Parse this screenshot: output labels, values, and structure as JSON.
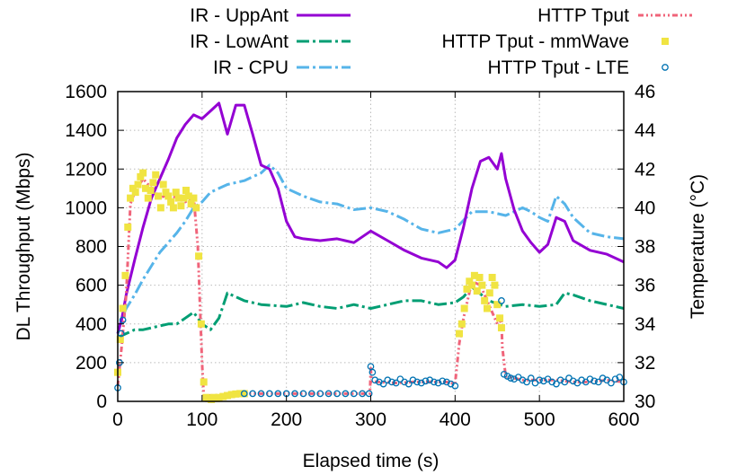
{
  "chart_data": {
    "type": "line",
    "title": "",
    "xlabel": "Elapsed time (s)",
    "ylabel_left": "DL Throughput (Mbps)",
    "ylabel_right": "Temperature (°C)",
    "xlim": [
      0,
      600
    ],
    "ylim_left": [
      0,
      1600
    ],
    "ylim_right": [
      30,
      46
    ],
    "x_ticks": [
      "0",
      "100",
      "200",
      "300",
      "400",
      "500",
      "600"
    ],
    "y_left_ticks": [
      "0",
      "200",
      "400",
      "600",
      "800",
      "1000",
      "1200",
      "1400",
      "1600"
    ],
    "y_right_ticks": [
      "30",
      "32",
      "34",
      "36",
      "38",
      "40",
      "42",
      "44",
      "46"
    ],
    "grid": true,
    "legend_position": "top, two columns above plot",
    "series": [
      {
        "name": "IR - UppAnt",
        "axis": "right",
        "style": "solid",
        "color": "#9400d3",
        "x": [
          0,
          5,
          10,
          20,
          30,
          40,
          50,
          60,
          70,
          80,
          90,
          100,
          110,
          120,
          130,
          140,
          150,
          160,
          170,
          180,
          190,
          200,
          210,
          220,
          240,
          260,
          280,
          300,
          320,
          340,
          360,
          380,
          390,
          400,
          410,
          420,
          430,
          440,
          450,
          455,
          460,
          470,
          480,
          490,
          500,
          510,
          520,
          530,
          540,
          560,
          580,
          600
        ],
        "y": [
          33.5,
          34.3,
          35.5,
          37.3,
          39.0,
          40.5,
          41.5,
          42.5,
          43.6,
          44.3,
          44.8,
          44.6,
          45.0,
          45.4,
          43.8,
          45.3,
          45.3,
          43.8,
          42.2,
          42.0,
          41.0,
          39.3,
          38.5,
          38.4,
          38.3,
          38.4,
          38.2,
          38.8,
          38.3,
          37.8,
          37.4,
          37.2,
          36.9,
          37.3,
          39.0,
          41.0,
          42.4,
          42.6,
          42.0,
          42.8,
          41.5,
          39.9,
          38.8,
          38.2,
          37.7,
          38.1,
          39.5,
          39.3,
          38.3,
          37.8,
          37.6,
          37.2
        ]
      },
      {
        "name": "IR - LowAnt",
        "axis": "right",
        "style": "dash-dot",
        "color": "#009e73",
        "x": [
          0,
          10,
          20,
          30,
          40,
          50,
          60,
          70,
          80,
          90,
          100,
          110,
          120,
          130,
          150,
          170,
          200,
          220,
          240,
          260,
          280,
          300,
          320,
          340,
          360,
          380,
          400,
          410,
          420,
          440,
          460,
          480,
          500,
          520,
          530,
          540,
          560,
          580,
          600
        ],
        "y": [
          33.3,
          33.5,
          33.7,
          33.7,
          33.8,
          33.9,
          34.0,
          34.0,
          34.3,
          34.6,
          34.0,
          33.7,
          34.3,
          35.6,
          35.2,
          35.0,
          34.9,
          35.1,
          34.9,
          34.8,
          35.0,
          34.8,
          35.0,
          35.2,
          35.2,
          35.0,
          35.1,
          35.4,
          35.9,
          35.2,
          34.9,
          35.0,
          34.9,
          35.0,
          35.6,
          35.5,
          35.2,
          35.0,
          34.8
        ]
      },
      {
        "name": "IR - CPU",
        "axis": "right",
        "style": "dash-dot",
        "color": "#56b4e9",
        "x": [
          0,
          5,
          10,
          20,
          30,
          40,
          50,
          60,
          70,
          80,
          90,
          100,
          110,
          120,
          130,
          150,
          170,
          180,
          190,
          200,
          220,
          240,
          260,
          280,
          300,
          320,
          340,
          360,
          380,
          400,
          420,
          440,
          460,
          470,
          480,
          490,
          500,
          510,
          520,
          530,
          540,
          560,
          580,
          600
        ],
        "y": [
          33.5,
          34.3,
          34.8,
          35.5,
          36.3,
          37.0,
          37.7,
          38.2,
          38.7,
          39.3,
          40.0,
          40.3,
          40.8,
          41.0,
          41.2,
          41.4,
          41.8,
          42.2,
          41.8,
          41.0,
          40.6,
          40.3,
          40.2,
          39.9,
          40.0,
          39.8,
          39.4,
          38.9,
          38.7,
          38.9,
          39.8,
          39.8,
          39.6,
          39.8,
          40.0,
          39.8,
          39.5,
          39.3,
          40.6,
          40.2,
          39.5,
          38.7,
          38.5,
          38.4
        ]
      },
      {
        "name": "HTTP Tput",
        "axis": "left",
        "style": "dash-dot-dot",
        "color": "#f0647a",
        "x": [
          0,
          5,
          10,
          15,
          20,
          30,
          40,
          50,
          60,
          70,
          80,
          90,
          95,
          100,
          102,
          110,
          150,
          200,
          250,
          299,
          300,
          301,
          310,
          330,
          350,
          370,
          390,
          400,
          405,
          410,
          420,
          430,
          440,
          450,
          455,
          456,
          460,
          480,
          500,
          520,
          540,
          560,
          580,
          600
        ],
        "y": [
          80,
          300,
          550,
          1020,
          1080,
          1150,
          1100,
          1050,
          1070,
          1050,
          1030,
          1060,
          800,
          200,
          30,
          30,
          40,
          40,
          40,
          40,
          170,
          100,
          100,
          95,
          100,
          100,
          100,
          90,
          300,
          430,
          620,
          600,
          500,
          400,
          420,
          280,
          130,
          110,
          110,
          110,
          100,
          100,
          110,
          100
        ]
      },
      {
        "name": "HTTP Tput - mmWave",
        "axis": "left",
        "style": "squares",
        "color": "#f0e442",
        "x": [
          0,
          3,
          6,
          9,
          12,
          15,
          18,
          21,
          24,
          27,
          30,
          33,
          36,
          39,
          42,
          45,
          48,
          51,
          54,
          57,
          60,
          63,
          66,
          69,
          72,
          75,
          78,
          81,
          84,
          87,
          90,
          93,
          96,
          99,
          102,
          105,
          108,
          111,
          114,
          117,
          120,
          125,
          130,
          135,
          140,
          145,
          150,
          405,
          408,
          411,
          414,
          417,
          420,
          423,
          426,
          429,
          432,
          435,
          438,
          441,
          444,
          447,
          450,
          453,
          455
        ],
        "y": [
          150,
          320,
          480,
          650,
          900,
          1050,
          1100,
          1080,
          1120,
          1160,
          1180,
          1100,
          1050,
          1090,
          1130,
          1170,
          1060,
          1000,
          1120,
          1080,
          1060,
          1030,
          1000,
          1080,
          1050,
          1010,
          1050,
          1090,
          1060,
          1020,
          1050,
          1000,
          750,
          400,
          100,
          20,
          15,
          10,
          20,
          15,
          20,
          25,
          30,
          35,
          38,
          40,
          40,
          350,
          400,
          480,
          580,
          620,
          600,
          650,
          570,
          640,
          600,
          520,
          480,
          560,
          640,
          600,
          500,
          430,
          380
        ]
      },
      {
        "name": "HTTP Tput - LTE",
        "axis": "left",
        "style": "circles",
        "color": "#0072b2",
        "x": [
          0,
          2,
          4,
          6,
          150,
          160,
          170,
          180,
          190,
          200,
          210,
          220,
          230,
          240,
          250,
          260,
          270,
          280,
          290,
          298,
          300,
          302,
          305,
          310,
          315,
          320,
          325,
          330,
          335,
          340,
          345,
          350,
          355,
          360,
          365,
          370,
          375,
          380,
          385,
          390,
          395,
          400,
          455,
          458,
          462,
          466,
          470,
          475,
          480,
          485,
          490,
          495,
          500,
          505,
          510,
          515,
          520,
          525,
          530,
          535,
          540,
          545,
          550,
          555,
          560,
          565,
          570,
          575,
          580,
          585,
          590,
          595,
          600
        ],
        "y": [
          70,
          200,
          350,
          420,
          40,
          40,
          40,
          40,
          40,
          40,
          40,
          40,
          40,
          40,
          40,
          40,
          40,
          40,
          40,
          40,
          180,
          150,
          110,
          100,
          90,
          110,
          100,
          95,
          115,
          100,
          90,
          110,
          100,
          95,
          105,
          110,
          100,
          95,
          105,
          100,
          90,
          80,
          520,
          140,
          130,
          120,
          115,
          125,
          110,
          100,
          120,
          95,
          110,
          105,
          115,
          100,
          90,
          110,
          100,
          120,
          105,
          95,
          110,
          100,
          115,
          105,
          100,
          120,
          110,
          95,
          115,
          125,
          100
        ]
      }
    ]
  }
}
